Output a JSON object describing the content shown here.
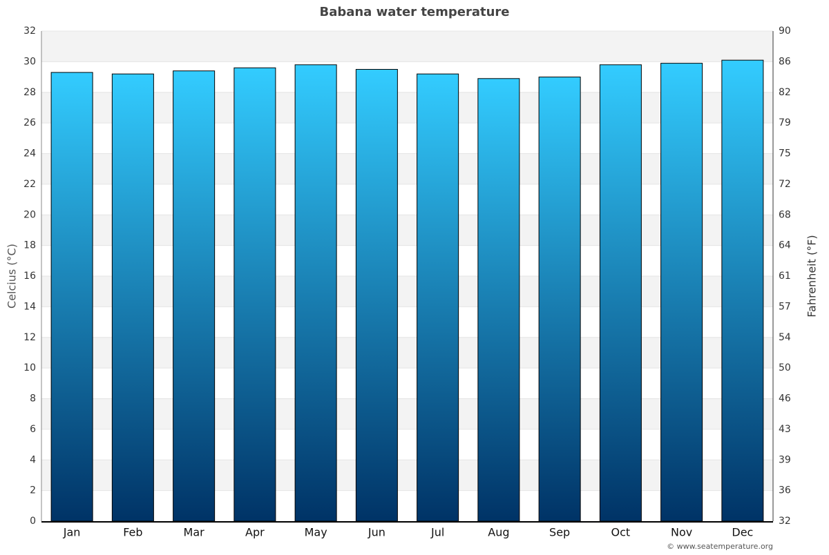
{
  "chart_data": {
    "type": "bar",
    "title": "Babana water temperature",
    "categories": [
      "Jan",
      "Feb",
      "Mar",
      "Apr",
      "May",
      "Jun",
      "Jul",
      "Aug",
      "Sep",
      "Oct",
      "Nov",
      "Dec"
    ],
    "values": [
      29.3,
      29.2,
      29.4,
      29.6,
      29.8,
      29.5,
      29.2,
      28.9,
      29.0,
      29.8,
      29.9,
      30.1
    ],
    "color": [
      "#33ccff",
      "#003366"
    ],
    "ylabel": "Celcius (°C)",
    "y2label": "Fahrenheit (°F)",
    "ylim": [
      0,
      32
    ],
    "yticks": [
      0,
      2,
      4,
      6,
      8,
      10,
      12,
      14,
      16,
      18,
      20,
      22,
      24,
      26,
      28,
      30,
      32
    ],
    "y2lim": [
      32,
      89.6
    ],
    "y2ticks": [
      32,
      {
        "value": 35.6,
        "label": "36"
      },
      {
        "value": 39.2,
        "label": "39"
      },
      {
        "value": 42.8,
        "label": "43"
      },
      {
        "value": 46.4,
        "label": "46"
      },
      50,
      {
        "value": 53.6,
        "label": "54"
      },
      {
        "value": 57.2,
        "label": "57"
      },
      {
        "value": 60.8,
        "label": "61"
      },
      {
        "value": 64.4,
        "label": "64"
      },
      68,
      {
        "value": 71.6,
        "label": "72"
      },
      {
        "value": 75.2,
        "label": "75"
      },
      {
        "value": 78.8,
        "label": "79"
      },
      {
        "value": 82.4,
        "label": "82"
      },
      86,
      {
        "value": 89.6,
        "label": "90"
      }
    ],
    "grid": true,
    "credit": "© www.seatemperature.org"
  }
}
